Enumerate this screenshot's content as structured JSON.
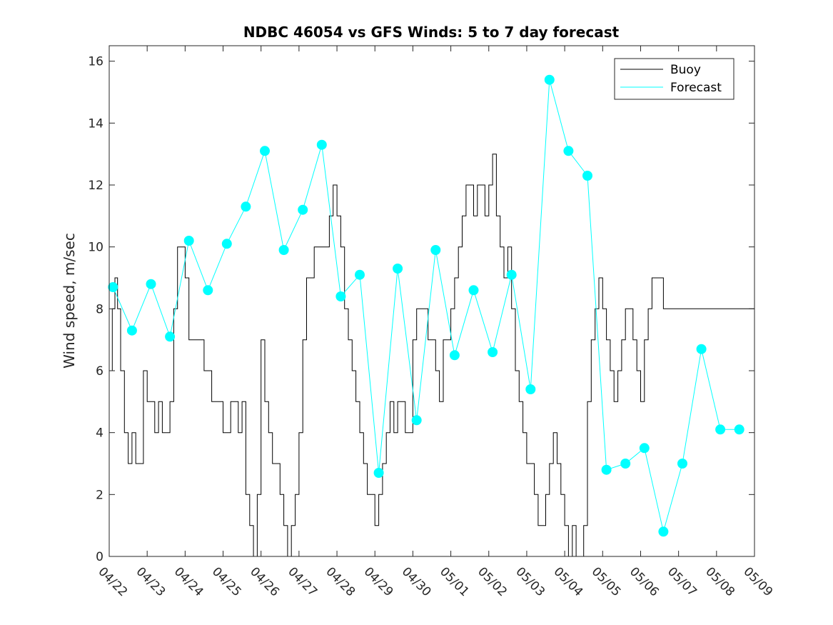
{
  "chart_data": {
    "type": "line",
    "title": "NDBC 46054 vs GFS Winds: 5 to 7 day forecast",
    "xlabel": "",
    "ylabel": "Wind speed, m/sec",
    "ylim": [
      0,
      16.5
    ],
    "yticks": [
      0,
      2,
      4,
      6,
      8,
      10,
      12,
      14,
      16
    ],
    "xlim": [
      0,
      17
    ],
    "xtick_labels": [
      "04/22",
      "04/23",
      "04/24",
      "04/25",
      "04/26",
      "04/27",
      "04/28",
      "04/29",
      "04/30",
      "05/01",
      "05/02",
      "05/03",
      "05/04",
      "05/05",
      "05/06",
      "05/07",
      "05/08",
      "05/09"
    ],
    "grid": false,
    "legend": {
      "placement": "top-right",
      "entries": [
        "Buoy",
        "Forecast"
      ]
    },
    "colors": {
      "buoy": "#000000",
      "forecast": "#00ffff"
    },
    "buoy": {
      "name": "Buoy",
      "x": [
        0.0,
        0.08,
        0.15,
        0.22,
        0.3,
        0.4,
        0.5,
        0.6,
        0.7,
        0.8,
        0.9,
        1.0,
        1.1,
        1.2,
        1.3,
        1.4,
        1.5,
        1.6,
        1.7,
        1.8,
        1.9,
        2.0,
        2.1,
        2.2,
        2.3,
        2.4,
        2.5,
        2.6,
        2.7,
        2.8,
        2.9,
        3.0,
        3.1,
        3.2,
        3.3,
        3.4,
        3.5,
        3.6,
        3.7,
        3.8,
        3.9,
        4.0,
        4.1,
        4.2,
        4.3,
        4.4,
        4.5,
        4.6,
        4.7,
        4.8,
        4.9,
        5.0,
        5.1,
        5.2,
        5.3,
        5.4,
        5.5,
        5.6,
        5.7,
        5.8,
        5.9,
        6.0,
        6.1,
        6.2,
        6.3,
        6.4,
        6.5,
        6.6,
        6.7,
        6.8,
        6.9,
        7.0,
        7.1,
        7.2,
        7.3,
        7.4,
        7.5,
        7.6,
        7.7,
        7.8,
        7.9,
        8.0,
        8.1,
        8.2,
        8.3,
        8.4,
        8.5,
        8.6,
        8.7,
        8.8,
        8.9,
        9.0,
        9.1,
        9.2,
        9.3,
        9.4,
        9.5,
        9.6,
        9.7,
        9.8,
        9.9,
        10.0,
        10.1,
        10.2,
        10.3,
        10.4,
        10.5,
        10.6,
        10.7,
        10.8,
        10.9,
        11.0,
        11.1,
        11.2,
        11.3,
        11.4,
        11.5,
        11.6,
        11.7,
        11.8,
        11.9,
        12.0,
        12.1,
        12.2,
        12.3,
        12.4,
        12.5,
        12.6,
        12.7,
        12.8,
        12.9,
        13.0,
        13.1,
        13.2,
        13.3,
        13.4,
        13.5,
        13.6,
        13.7,
        13.8,
        13.9,
        14.0,
        14.1,
        14.2,
        14.3,
        14.4,
        14.5,
        14.6,
        14.7,
        14.8,
        14.9,
        15.0,
        15.1,
        15.2,
        15.3,
        15.4,
        15.5,
        15.6,
        15.7,
        15.8,
        15.9,
        16.0,
        16.1,
        16.2,
        16.3,
        16.4,
        16.5,
        16.6,
        16.7,
        16.8,
        16.9,
        17.0
      ],
      "y": [
        6,
        8,
        9,
        8,
        6,
        4,
        3,
        4,
        3,
        3,
        6,
        5,
        5,
        4,
        5,
        4,
        4,
        5,
        8,
        10,
        10,
        9,
        7,
        7,
        7,
        7,
        6,
        6,
        5,
        5,
        5,
        4,
        4,
        5,
        5,
        4,
        5,
        2,
        1,
        0,
        2,
        7,
        5,
        4,
        3,
        3,
        2,
        1,
        0,
        1,
        2,
        4,
        7,
        9,
        9,
        10,
        10,
        10,
        10,
        11,
        12,
        11,
        10,
        8,
        7,
        6,
        5,
        4,
        3,
        2,
        2,
        1,
        2,
        3,
        4,
        5,
        4,
        5,
        5,
        4,
        4,
        7,
        8,
        8,
        8,
        7,
        7,
        6,
        5,
        7,
        7,
        8,
        9,
        10,
        11,
        12,
        12,
        11,
        12,
        12,
        11,
        12,
        13,
        11,
        10,
        9,
        10,
        8,
        6,
        5,
        4,
        3,
        3,
        2,
        1,
        1,
        2,
        3,
        4,
        3,
        2,
        1,
        0,
        1,
        0,
        0,
        1,
        5,
        7,
        8,
        9,
        8,
        7,
        6,
        5,
        6,
        7,
        8,
        8,
        7,
        6,
        5,
        7,
        8,
        9,
        9,
        9,
        8,
        8,
        8,
        8,
        8,
        8,
        8,
        8,
        8,
        8,
        8,
        8,
        8,
        8,
        8,
        8,
        8,
        8,
        8,
        8,
        8,
        8,
        8,
        8,
        8
      ],
      "y_note": ""
    },
    "forecast_points": {
      "name": "Forecast",
      "x": [
        0.1,
        0.6,
        1.1,
        1.6,
        2.1,
        2.6,
        3.1,
        3.6,
        4.1,
        4.6,
        5.1,
        5.6,
        6.1,
        6.6,
        7.1,
        7.6,
        8.1,
        8.6,
        9.1,
        9.6,
        10.1,
        10.6,
        11.1,
        11.6,
        12.1,
        12.6,
        13.1,
        13.6,
        14.1,
        14.6,
        15.1,
        15.6,
        16.1,
        16.6
      ],
      "y": [
        8.7,
        7.3,
        8.8,
        7.1,
        10.2,
        8.6,
        10.1,
        11.3,
        13.1,
        9.9,
        11.2,
        13.3,
        8.4,
        9.1,
        2.7,
        9.3,
        4.4,
        9.9,
        6.5,
        8.6,
        6.6,
        9.1,
        5.4,
        15.4,
        13.1,
        12.3,
        2.8,
        3.0,
        3.5,
        0.8,
        3.0,
        6.7,
        4.1,
        4.1
      ]
    }
  }
}
